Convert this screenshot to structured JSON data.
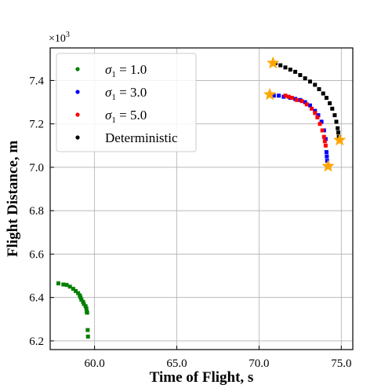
{
  "chart_data": {
    "type": "scatter",
    "xlabel": "Time of Flight, s",
    "ylabel": "Flight Distance, m",
    "y_offset_label": "×10",
    "y_offset_exponent": "3",
    "xlim": [
      57.3,
      75.7
    ],
    "ylim": [
      6.16,
      7.55
    ],
    "grid": true,
    "legend_position": "top-left",
    "x_ticks": [
      60.0,
      65.0,
      70.0,
      75.0
    ],
    "x_tick_labels": [
      "60.0",
      "65.0",
      "70.0",
      "75.0"
    ],
    "y_ticks": [
      6.2,
      6.4,
      6.6,
      6.8,
      7.0,
      7.2,
      7.4
    ],
    "y_tick_labels": [
      "6.2",
      "6.4",
      "6.6",
      "6.8",
      "7.0",
      "7.2",
      "7.4"
    ],
    "series": [
      {
        "name": "σ₁ = 1.0",
        "legend_symbol": "σ",
        "legend_sub": "1",
        "legend_value": " = 1.0",
        "color": "#008000",
        "points": [
          [
            57.8,
            6.465
          ],
          [
            58.1,
            6.46
          ],
          [
            58.3,
            6.458
          ],
          [
            58.5,
            6.45
          ],
          [
            58.7,
            6.44
          ],
          [
            58.85,
            6.43
          ],
          [
            59.0,
            6.42
          ],
          [
            59.1,
            6.41
          ],
          [
            59.15,
            6.4
          ],
          [
            59.2,
            6.39
          ],
          [
            59.3,
            6.38
          ],
          [
            59.35,
            6.37
          ],
          [
            59.45,
            6.36
          ],
          [
            59.5,
            6.35
          ],
          [
            59.52,
            6.335
          ],
          [
            59.55,
            6.33
          ],
          [
            59.58,
            6.25
          ],
          [
            59.6,
            6.22
          ]
        ]
      },
      {
        "name": "σ₁ = 3.0",
        "legend_symbol": "σ",
        "legend_sub": "1",
        "legend_value": " = 3.0",
        "color": "#0000ff",
        "points": [
          [
            70.9,
            7.33
          ],
          [
            71.2,
            7.33
          ],
          [
            71.5,
            7.325
          ],
          [
            71.9,
            7.32
          ],
          [
            72.2,
            7.315
          ],
          [
            72.5,
            7.31
          ],
          [
            72.8,
            7.3
          ],
          [
            73.1,
            7.285
          ],
          [
            73.4,
            7.26
          ],
          [
            73.6,
            7.24
          ],
          [
            73.8,
            7.21
          ],
          [
            73.95,
            7.17
          ],
          [
            74.05,
            7.13
          ],
          [
            74.1,
            7.07
          ],
          [
            74.12,
            7.05
          ],
          [
            74.14,
            7.03
          ]
        ]
      },
      {
        "name": "σ₁ = 5.0",
        "legend_symbol": "σ",
        "legend_sub": "1",
        "legend_value": " = 5.0",
        "color": "#ff0000",
        "points": [
          [
            71.6,
            7.33
          ],
          [
            71.8,
            7.325
          ],
          [
            72.0,
            7.32
          ],
          [
            72.3,
            7.31
          ],
          [
            72.6,
            7.305
          ],
          [
            72.9,
            7.29
          ],
          [
            73.2,
            7.27
          ],
          [
            73.4,
            7.25
          ],
          [
            73.55,
            7.23
          ],
          [
            73.7,
            7.2
          ],
          [
            73.85,
            7.17
          ],
          [
            73.95,
            7.14
          ],
          [
            74.0,
            7.12
          ],
          [
            74.05,
            7.1
          ]
        ]
      },
      {
        "name": "Deterministic",
        "legend_symbol": "",
        "legend_sub": "",
        "legend_value": "Deterministic",
        "color": "#000000",
        "points": [
          [
            71.0,
            7.48
          ],
          [
            71.3,
            7.47
          ],
          [
            71.6,
            7.46
          ],
          [
            71.9,
            7.45
          ],
          [
            72.2,
            7.44
          ],
          [
            72.5,
            7.425
          ],
          [
            72.8,
            7.41
          ],
          [
            73.1,
            7.395
          ],
          [
            73.4,
            7.38
          ],
          [
            73.65,
            7.36
          ],
          [
            73.9,
            7.34
          ],
          [
            74.1,
            7.32
          ],
          [
            74.3,
            7.295
          ],
          [
            74.45,
            7.27
          ],
          [
            74.6,
            7.24
          ],
          [
            74.7,
            7.21
          ],
          [
            74.78,
            7.18
          ],
          [
            74.82,
            7.16
          ],
          [
            74.85,
            7.14
          ]
        ]
      }
    ],
    "markers": {
      "color": "#ffa500",
      "shape": "star",
      "points": [
        [
          70.85,
          7.48
        ],
        [
          70.65,
          7.335
        ],
        [
          74.9,
          7.125
        ],
        [
          74.2,
          7.005
        ]
      ]
    }
  }
}
